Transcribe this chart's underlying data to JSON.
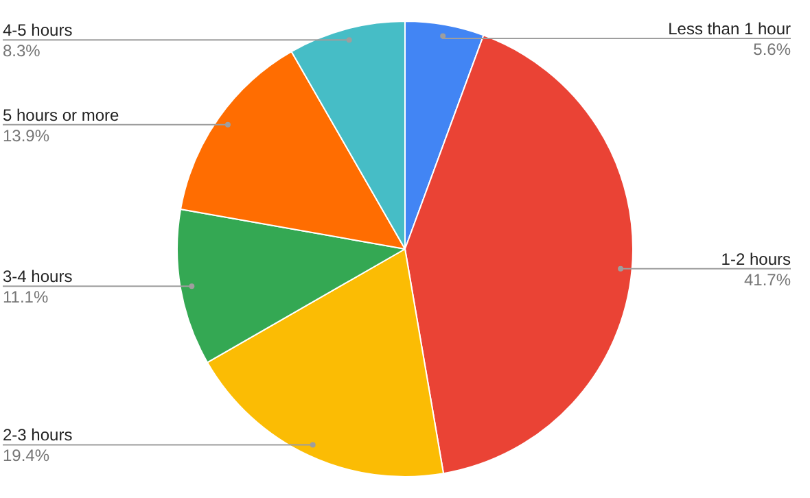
{
  "chart_data": {
    "type": "pie",
    "categories": [
      "Less than 1 hour",
      "1-2 hours",
      "2-3 hours",
      "3-4 hours",
      "5 hours or more",
      "4-5 hours"
    ],
    "values": [
      5.6,
      41.7,
      19.4,
      11.1,
      13.9,
      8.3
    ],
    "colors": [
      "#4285f4",
      "#ea4335",
      "#fbbc04",
      "#34a853",
      "#ff6d01",
      "#46bdc6"
    ],
    "value_labels": [
      "5.6%",
      "41.7%",
      "19.4%",
      "11.1%",
      "13.9%",
      "8.3%"
    ],
    "legend": false
  }
}
